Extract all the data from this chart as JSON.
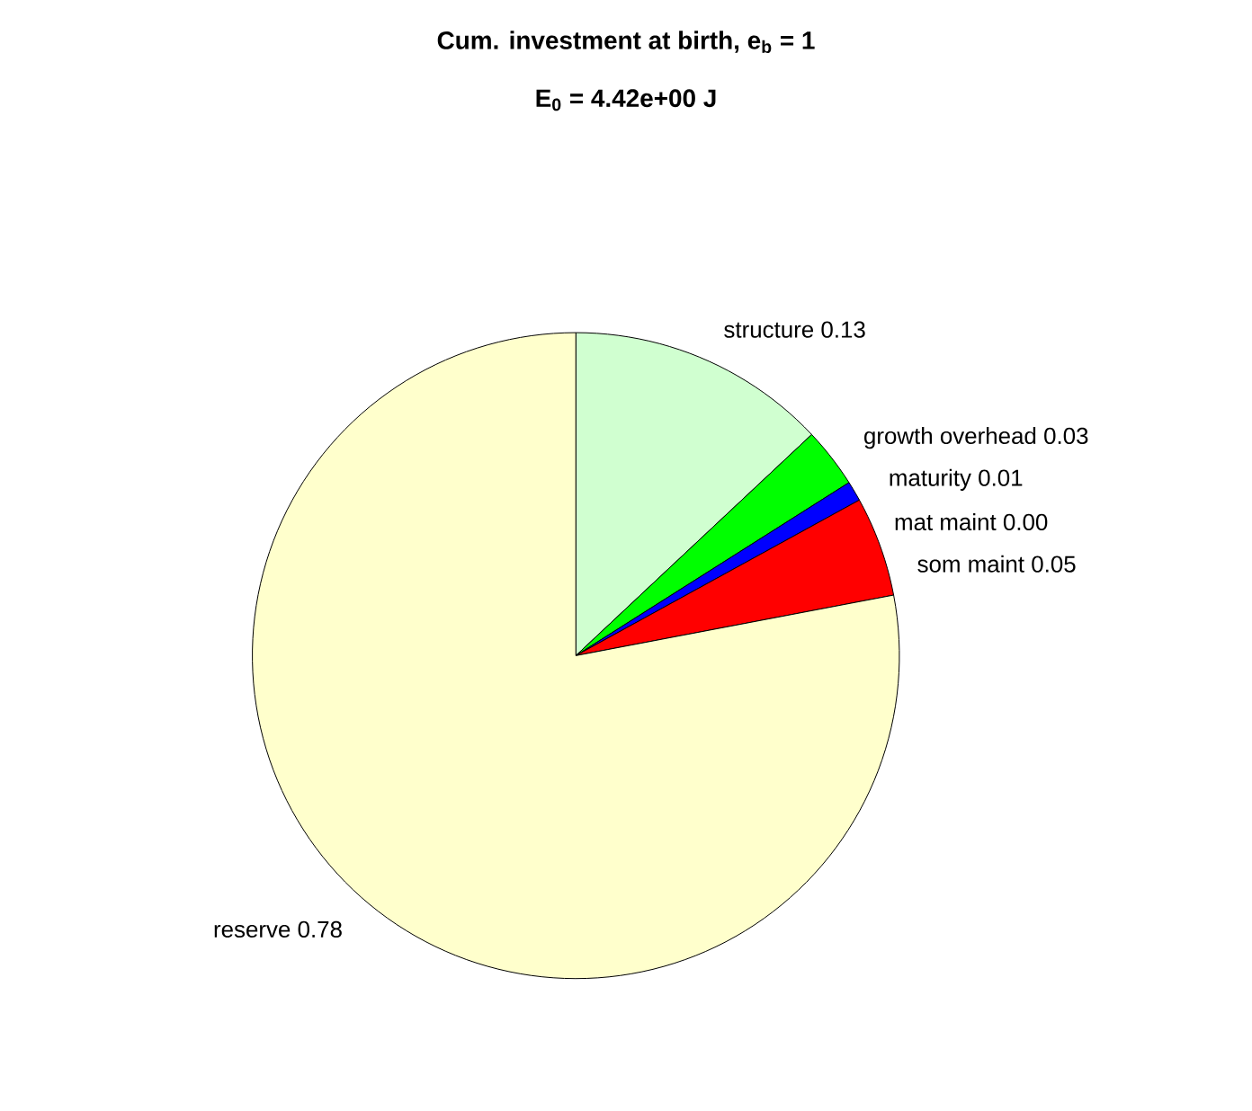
{
  "chart_data": {
    "type": "pie",
    "title": "Cum. investment at birth, e$_{b}$ = 1",
    "subtitle": "E$_{0}$ = 4.42e+00 J",
    "categories": [
      "structure",
      "growth overhead",
      "maturity",
      "mat maint",
      "som maint",
      "reserve"
    ],
    "values": [
      0.13,
      0.03,
      0.01,
      0.0,
      0.05,
      0.78
    ],
    "value_labels": [
      "0.13",
      "0.03",
      "0.01",
      "0.00",
      "0.05",
      "0.78"
    ],
    "colors": [
      "#d0ffd0",
      "#00ff00",
      "#0000ff",
      "#800080",
      "#ff0000",
      "#ffffcc"
    ]
  }
}
